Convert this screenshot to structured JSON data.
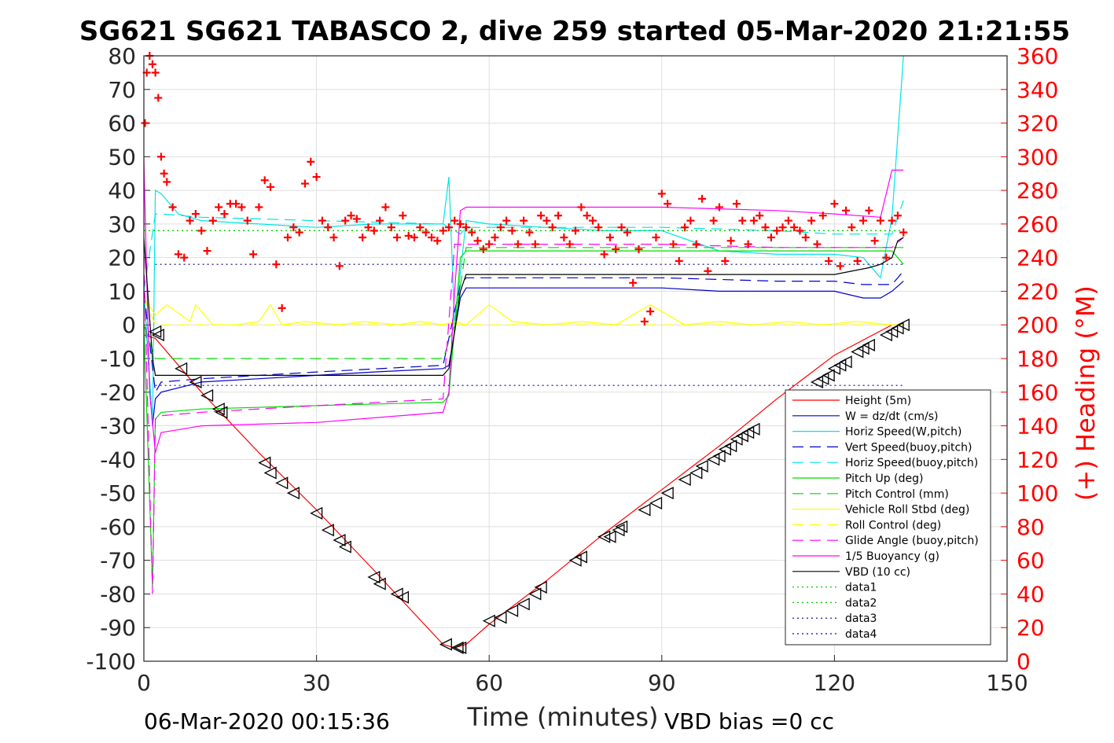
{
  "chart_data": {
    "type": "line",
    "title": "SG621 SG621 TABASCO 2, dive 259 started 05-Mar-2020 21:21:55",
    "xlabel": "Time (minutes)",
    "ylabel_right": "(+) Heading (°M)",
    "footer_left": "06-Mar-2020 00:15:36",
    "footer_right": "VBD bias =0 cc",
    "xlim": [
      0,
      150
    ],
    "ylim": [
      -100,
      80
    ],
    "ylim_right": [
      0,
      360
    ],
    "x_ticks": [
      "0",
      "30",
      "60",
      "90",
      "120",
      "150"
    ],
    "y_ticks": [
      "80",
      "70",
      "60",
      "50",
      "40",
      "30",
      "20",
      "10",
      "0",
      "-10",
      "-20",
      "-30",
      "-40",
      "-50",
      "-60",
      "-70",
      "-80",
      "-90",
      "-100"
    ],
    "y_ticks_right": [
      "360",
      "340",
      "320",
      "300",
      "280",
      "260",
      "240",
      "220",
      "200",
      "180",
      "160",
      "140",
      "120",
      "100",
      "80",
      "60",
      "40",
      "20",
      "0"
    ],
    "grid": true,
    "legend_position": "bottom-right",
    "series": [
      {
        "name": "Height (5m)",
        "color": "#ff0000",
        "style": "solid",
        "x": [
          0,
          2,
          10,
          20,
          30,
          40,
          52,
          54,
          56,
          60,
          70,
          80,
          90,
          100,
          110,
          120,
          130,
          132
        ],
        "y": [
          -3,
          -4,
          -20,
          -38,
          -55,
          -73,
          -95,
          -96,
          -95,
          -89,
          -76,
          -62,
          -49,
          -36,
          -22,
          -9,
          0,
          0
        ]
      },
      {
        "name": "W = dz/dt (cm/s)",
        "color": "#0000cd",
        "style": "solid",
        "x": [
          0,
          1.5,
          2,
          3,
          10,
          20,
          30,
          40,
          52,
          53,
          55,
          56,
          60,
          70,
          80,
          90,
          100,
          110,
          120,
          125,
          128,
          130,
          132
        ],
        "y": [
          10,
          -30,
          -22,
          -20,
          -17,
          -16,
          -15,
          -14,
          -13,
          -12,
          8,
          11,
          11,
          11,
          11,
          11,
          10,
          10,
          10,
          8,
          8,
          10,
          13
        ]
      },
      {
        "name": "Horiz Speed(W,pitch)",
        "color": "#00e5e5",
        "style": "solid",
        "x": [
          0,
          1.5,
          2,
          3,
          6,
          10,
          20,
          30,
          40,
          52,
          53,
          54,
          56,
          60,
          70,
          80,
          90,
          100,
          110,
          120,
          125,
          128,
          130,
          132
        ],
        "y": [
          10,
          -30,
          40,
          39,
          33,
          31,
          30,
          29,
          30,
          30,
          44,
          0,
          31,
          30,
          29,
          28,
          28,
          22,
          21,
          21,
          20,
          14,
          32,
          80
        ]
      },
      {
        "name": "Vert Speed(buoy,pitch)",
        "color": "#0000cd",
        "style": "dash",
        "x": [
          0,
          2,
          3,
          10,
          30,
          52,
          55,
          56,
          70,
          90,
          110,
          120,
          125,
          130,
          132
        ],
        "y": [
          10,
          -20,
          -17,
          -16,
          -14,
          -12,
          12,
          14,
          14,
          14,
          13,
          13,
          12,
          12,
          16
        ]
      },
      {
        "name": "Horiz Speed(buoy,pitch)",
        "color": "#00e5e5",
        "style": "dash",
        "x": [
          0,
          2,
          3,
          10,
          30,
          52,
          55,
          56,
          70,
          90,
          110,
          120,
          130,
          132
        ],
        "y": [
          10,
          33,
          33,
          32,
          31,
          30,
          27,
          29,
          29,
          29,
          28,
          27,
          27,
          37
        ]
      },
      {
        "name": "Pitch Up (deg)",
        "color": "#00dd00",
        "style": "solid",
        "x": [
          0,
          1.5,
          2,
          3,
          10,
          30,
          52,
          53,
          55,
          56,
          70,
          90,
          110,
          120,
          128,
          130,
          132
        ],
        "y": [
          0,
          -78,
          -28,
          -26,
          -25,
          -24,
          -23,
          -21,
          20,
          22,
          22,
          22,
          22,
          22,
          22,
          22,
          18
        ]
      },
      {
        "name": "Pitch Control (mm)",
        "color": "#00dd00",
        "style": "dash",
        "x": [
          0,
          2,
          52,
          54,
          56,
          132
        ],
        "y": [
          0,
          -10,
          -10,
          0,
          23,
          23
        ]
      },
      {
        "name": "Vehicle Roll Stbd (deg)",
        "color": "#ffff00",
        "style": "solid",
        "x": [
          0,
          2,
          4,
          8,
          9,
          12,
          16,
          20,
          22,
          24,
          28,
          34,
          38,
          44,
          48,
          52,
          54,
          56,
          60,
          64,
          70,
          76,
          82,
          88,
          94,
          100,
          106,
          112,
          118,
          124,
          130,
          132
        ],
        "y": [
          8,
          3,
          6,
          1,
          6,
          0,
          0,
          1,
          6,
          0,
          1,
          0,
          1,
          0,
          1,
          0,
          1,
          0,
          6,
          1,
          0,
          1,
          0,
          6,
          0,
          1,
          0,
          1,
          0,
          1,
          0,
          0
        ]
      },
      {
        "name": "Roll Control (deg)",
        "color": "#ffff00",
        "style": "dash",
        "x": [
          0,
          2,
          132
        ],
        "y": [
          8,
          0,
          0
        ]
      },
      {
        "name": "Glide Angle (buoy,pitch)",
        "color": "#ff00ff",
        "style": "dash",
        "x": [
          0,
          1.5,
          2,
          3,
          10,
          30,
          52,
          54,
          56,
          70,
          90,
          110,
          120,
          130,
          132
        ],
        "y": [
          20,
          -80,
          -28,
          -27,
          -26,
          -24,
          -22,
          24,
          24,
          24,
          24,
          23,
          23,
          23,
          26
        ]
      },
      {
        "name": "1/5 Buoyancy (g)",
        "color": "#ff00ff",
        "style": "solid",
        "x": [
          0,
          1,
          2,
          3,
          10,
          30,
          52,
          53,
          54,
          55,
          56,
          70,
          90,
          110,
          120,
          128,
          130,
          132
        ],
        "y": [
          49,
          -20,
          -38,
          -32,
          -30,
          -29,
          -26,
          -20,
          10,
          34,
          35,
          35,
          35,
          34,
          33,
          32,
          46,
          46
        ]
      },
      {
        "name": "VBD (10 cc)",
        "color": "#000000",
        "style": "solid",
        "x": [
          0,
          1.5,
          2,
          3,
          52,
          53,
          54,
          55,
          56,
          120,
          126,
          128,
          130,
          131,
          132
        ],
        "y": [
          26,
          -10,
          -15,
          -15,
          -15,
          -13,
          -2,
          10,
          15,
          15,
          17,
          18,
          20,
          25,
          26
        ]
      },
      {
        "name": "data1",
        "color": "#00cc00",
        "style": "dot",
        "x": [
          0,
          132
        ],
        "y": [
          28,
          28
        ]
      },
      {
        "name": "data2",
        "color": "#00cc00",
        "style": "dot",
        "x": [
          0,
          132
        ],
        "y": [
          28,
          28
        ]
      },
      {
        "name": "data3",
        "color": "#000080",
        "style": "dot",
        "x": [
          2,
          132
        ],
        "y": [
          18,
          18
        ]
      },
      {
        "name": "data4",
        "color": "#0000cd",
        "style": "dot",
        "x": [
          2,
          132
        ],
        "y": [
          -18,
          -18
        ]
      }
    ],
    "heading_series": {
      "name": "(+) Heading",
      "color": "#ff0000",
      "marker": "+",
      "axis": "right",
      "x": [
        0.2,
        0.5,
        1,
        1.5,
        2,
        2.5,
        3,
        3.5,
        4,
        5,
        6,
        7,
        8,
        9,
        10,
        11,
        12,
        13,
        14,
        15,
        16,
        17,
        18,
        19,
        20,
        21,
        22,
        23,
        24,
        25,
        26,
        27,
        28,
        29,
        30,
        31,
        32,
        33,
        34,
        35,
        36,
        37,
        38,
        39,
        40,
        41,
        42,
        43,
        44,
        45,
        46,
        47,
        48,
        49,
        50,
        51,
        52,
        53,
        54,
        55,
        56,
        57,
        58,
        59,
        60,
        61,
        62,
        63,
        64,
        65,
        66,
        67,
        68,
        69,
        70,
        71,
        72,
        73,
        74,
        75,
        76,
        77,
        78,
        79,
        80,
        81,
        82,
        83,
        84,
        85,
        86,
        87,
        88,
        89,
        90,
        91,
        92,
        93,
        94,
        95,
        96,
        97,
        98,
        99,
        100,
        101,
        102,
        103,
        104,
        105,
        106,
        107,
        108,
        109,
        110,
        111,
        112,
        113,
        114,
        115,
        116,
        117,
        118,
        119,
        120,
        121,
        122,
        123,
        124,
        125,
        126,
        127,
        128,
        129,
        130,
        131,
        132
      ],
      "y": [
        320,
        350,
        360,
        355,
        350,
        335,
        300,
        290,
        285,
        270,
        242,
        240,
        262,
        266,
        256,
        244,
        262,
        270,
        266,
        272,
        272,
        270,
        262,
        242,
        270,
        286,
        282,
        236,
        210,
        252,
        258,
        255,
        284,
        297,
        288,
        262,
        258,
        252,
        235,
        262,
        265,
        263,
        252,
        258,
        256,
        262,
        270,
        258,
        252,
        265,
        253,
        252,
        258,
        255,
        252,
        250,
        256,
        258,
        262,
        260,
        258,
        255,
        250,
        245,
        248,
        252,
        258,
        262,
        256,
        248,
        262,
        255,
        248,
        265,
        262,
        258,
        265,
        252,
        248,
        256,
        270,
        265,
        262,
        258,
        242,
        252,
        245,
        258,
        255,
        225,
        245,
        202,
        208,
        252,
        278,
        272,
        248,
        238,
        258,
        262,
        248,
        275,
        232,
        262,
        270,
        238,
        250,
        272,
        262,
        248,
        262,
        265,
        258,
        252,
        256,
        258,
        262,
        258,
        256,
        252,
        262,
        248,
        265,
        238,
        272,
        235,
        268,
        258,
        238,
        262,
        268,
        250,
        262,
        240,
        262,
        265,
        255
      ]
    },
    "depth_markers": {
      "name": "Height (5m)",
      "color": "#000000",
      "marker": "triangle-left",
      "x": [
        2,
        2.5,
        6.5,
        9,
        11,
        13,
        13.5,
        21,
        22,
        24,
        26,
        30,
        32,
        34,
        35,
        40,
        41,
        44,
        45,
        52.5,
        54.5,
        55,
        60,
        62,
        64,
        66,
        68,
        69,
        75,
        76,
        80,
        81,
        82.5,
        83,
        87,
        89,
        91,
        94,
        96,
        97,
        99,
        100,
        101,
        102,
        103,
        104,
        105,
        106,
        117,
        118,
        119,
        120,
        121,
        122,
        124,
        125,
        126,
        129,
        130,
        131,
        132
      ],
      "y": [
        -2,
        -3,
        -13,
        -17,
        -21,
        -25,
        -26,
        -41,
        -44,
        -47,
        -50,
        -56,
        -61,
        -64,
        -66,
        -75,
        -77,
        -80,
        -81,
        -95,
        -96,
        -96,
        -88,
        -87,
        -85,
        -83,
        -80,
        -78,
        -70,
        -69,
        -63,
        -63,
        -61,
        -60,
        -55,
        -53,
        -50,
        -46,
        -44,
        -42,
        -40,
        -39,
        -37,
        -36,
        -34,
        -33,
        -32,
        -31,
        -17,
        -16,
        -15,
        -13,
        -12,
        -11,
        -8,
        -7,
        -6,
        -3,
        -2,
        -1,
        0
      ]
    }
  }
}
